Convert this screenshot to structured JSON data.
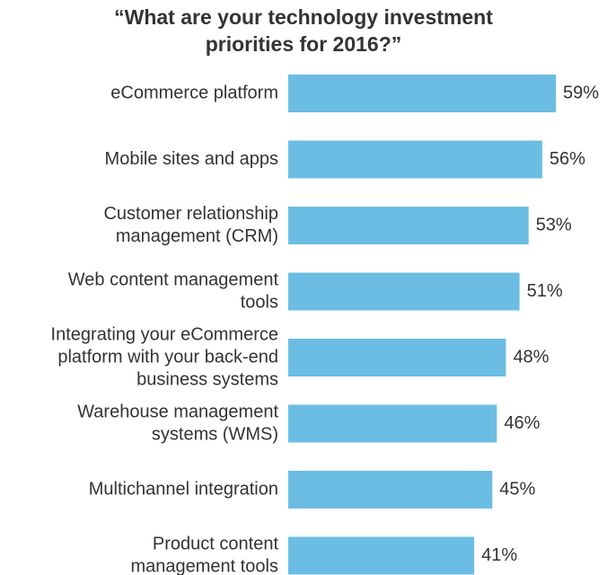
{
  "chart_data": {
    "type": "bar",
    "orientation": "horizontal",
    "title_lines": [
      "“What are your technology investment",
      "priorities for 2016?”"
    ],
    "categories": [
      [
        "eCommerce platform"
      ],
      [
        "Mobile sites and apps"
      ],
      [
        "Customer relationship",
        "management (CRM)"
      ],
      [
        "Web content management",
        "tools"
      ],
      [
        "Integrating your eCommerce",
        "platform with your back-end",
        "business systems"
      ],
      [
        "Warehouse management",
        "systems (WMS)"
      ],
      [
        "Multichannel integration"
      ],
      [
        "Product content",
        "management tools"
      ]
    ],
    "values": [
      59,
      56,
      53,
      51,
      48,
      46,
      45,
      41
    ],
    "value_labels": [
      "59%",
      "56%",
      "53%",
      "51%",
      "48%",
      "46%",
      "45%",
      "41%"
    ],
    "unit": "%",
    "bar_color": "#6bbde3",
    "text_color": "#333333",
    "xlim": [
      0,
      59
    ]
  }
}
